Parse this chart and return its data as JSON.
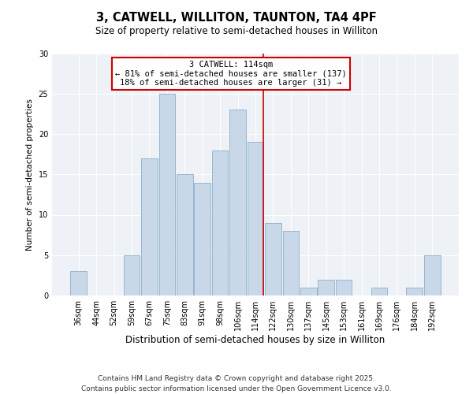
{
  "title": "3, CATWELL, WILLITON, TAUNTON, TA4 4PF",
  "subtitle": "Size of property relative to semi-detached houses in Williton",
  "xlabel": "Distribution of semi-detached houses by size in Williton",
  "ylabel": "Number of semi-detached properties",
  "categories": [
    "36sqm",
    "44sqm",
    "52sqm",
    "59sqm",
    "67sqm",
    "75sqm",
    "83sqm",
    "91sqm",
    "98sqm",
    "106sqm",
    "114sqm",
    "122sqm",
    "130sqm",
    "137sqm",
    "145sqm",
    "153sqm",
    "161sqm",
    "169sqm",
    "176sqm",
    "184sqm",
    "192sqm"
  ],
  "values": [
    3,
    0,
    0,
    5,
    17,
    25,
    15,
    14,
    18,
    23,
    19,
    9,
    8,
    1,
    2,
    2,
    0,
    1,
    0,
    1,
    5
  ],
  "bar_color": "#c8d8e8",
  "bar_edge_color": "#8ab0cc",
  "vline_color": "#cc0000",
  "annotation_title": "3 CATWELL: 114sqm",
  "annotation_line1": "← 81% of semi-detached houses are smaller (137)",
  "annotation_line2": "18% of semi-detached houses are larger (31) →",
  "ylim": [
    0,
    30
  ],
  "yticks": [
    0,
    5,
    10,
    15,
    20,
    25,
    30
  ],
  "footer1": "Contains HM Land Registry data © Crown copyright and database right 2025.",
  "footer2": "Contains public sector information licensed under the Open Government Licence v3.0.",
  "background_color": "#eef2f7",
  "title_fontsize": 10.5,
  "subtitle_fontsize": 8.5,
  "xlabel_fontsize": 8.5,
  "ylabel_fontsize": 7.5,
  "tick_fontsize": 7,
  "annotation_fontsize": 7.5,
  "footer_fontsize": 6.5
}
